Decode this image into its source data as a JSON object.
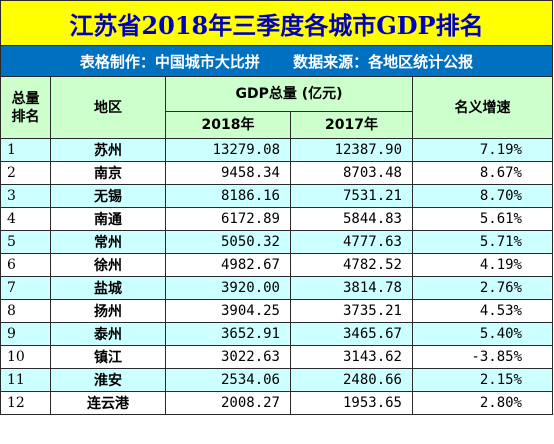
{
  "title": "江苏省2018年三季度各城市GDP排名",
  "subtitle": {
    "maker": "表格制作：中国城市大比拼",
    "source": "数据来源：各地区统计公报"
  },
  "headers": {
    "rank": "总量\n排名",
    "region": "地区",
    "gdp_total": "GDP总量 (亿元)",
    "year_2018": "2018年",
    "year_2017": "2017年",
    "growth": "名义增速"
  },
  "rows": [
    {
      "rank": "1",
      "city": "苏州",
      "gdp_2018": "13279.08",
      "gdp_2017": "12387.90",
      "growth": "7.19%"
    },
    {
      "rank": "2",
      "city": "南京",
      "gdp_2018": "9458.34",
      "gdp_2017": "8703.48",
      "growth": "8.67%"
    },
    {
      "rank": "3",
      "city": "无锡",
      "gdp_2018": "8186.16",
      "gdp_2017": "7531.21",
      "growth": "8.70%"
    },
    {
      "rank": "4",
      "city": "南通",
      "gdp_2018": "6172.89",
      "gdp_2017": "5844.83",
      "growth": "5.61%"
    },
    {
      "rank": "5",
      "city": "常州",
      "gdp_2018": "5050.32",
      "gdp_2017": "4777.63",
      "growth": "5.71%"
    },
    {
      "rank": "6",
      "city": "徐州",
      "gdp_2018": "4982.67",
      "gdp_2017": "4782.52",
      "growth": "4.19%"
    },
    {
      "rank": "7",
      "city": "盐城",
      "gdp_2018": "3920.00",
      "gdp_2017": "3814.78",
      "growth": "2.76%"
    },
    {
      "rank": "8",
      "city": "扬州",
      "gdp_2018": "3904.25",
      "gdp_2017": "3735.21",
      "growth": "4.53%"
    },
    {
      "rank": "9",
      "city": "泰州",
      "gdp_2018": "3652.91",
      "gdp_2017": "3465.67",
      "growth": "5.40%"
    },
    {
      "rank": "10",
      "city": "镇江",
      "gdp_2018": "3022.63",
      "gdp_2017": "3143.62",
      "growth": "-3.85%"
    },
    {
      "rank": "11",
      "city": "淮安",
      "gdp_2018": "2534.06",
      "gdp_2017": "2480.66",
      "growth": "2.15%"
    },
    {
      "rank": "12",
      "city": "连云港",
      "gdp_2018": "2008.27",
      "gdp_2017": "1953.65",
      "growth": "2.80%"
    }
  ],
  "colors": {
    "title_bg": "#ffff00",
    "title_text": "#0000c0",
    "subtitle_bg": "#0070c0",
    "header_bg": "#ccffcc",
    "odd_row_bg": "#ccffff",
    "even_row_bg": "#ffffff"
  }
}
